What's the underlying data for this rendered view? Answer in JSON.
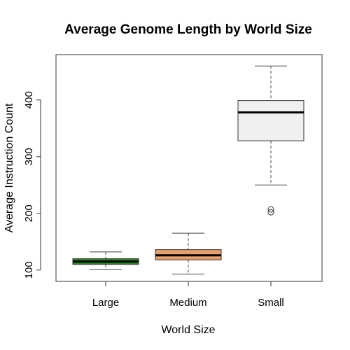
{
  "chart_data": {
    "type": "boxplot",
    "title": "Average Genome Length by World Size",
    "xlabel": "World Size",
    "ylabel": "Average Instruction Count",
    "ylim": [
      80,
      480
    ],
    "yticks": [
      100,
      200,
      300,
      400
    ],
    "categories": [
      "Large",
      "Medium",
      "Small"
    ],
    "boxes": [
      {
        "category": "Large",
        "min": 101,
        "q1": 110,
        "median": 115,
        "q3": 120,
        "max": 132,
        "outliers": [],
        "color": "#228b22"
      },
      {
        "category": "Medium",
        "min": 93,
        "q1": 118,
        "median": 126,
        "q3": 136,
        "max": 165,
        "outliers": [],
        "color": "#e8a06a"
      },
      {
        "category": "Small",
        "min": 250,
        "q1": 328,
        "median": 378,
        "q3": 399,
        "max": 460,
        "outliers": [
          207,
          202
        ],
        "color": "#f0f0f0"
      }
    ],
    "grid": false,
    "legend": "none"
  }
}
